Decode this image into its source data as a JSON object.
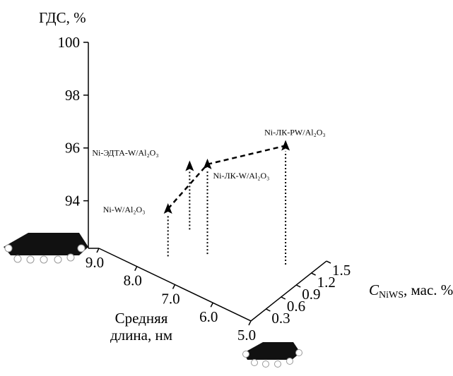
{
  "chart_data": {
    "type": "scatter3d",
    "z_label": "ГДС, %",
    "x_label": [
      "Средняя",
      "длина, нм"
    ],
    "y_label": {
      "symbol": "C",
      "subscript": "NiWS",
      "text": ", мас. %"
    },
    "points": [
      {
        "name": "Ni-W/Al₂O₃",
        "x": 7.7,
        "y": 0.39,
        "z": 94.0
      },
      {
        "name": "Ni-ЭДТА-W/Al₂O₃",
        "x": 7.9,
        "y": 0.97,
        "z": 94.6
      },
      {
        "name": "Ni-ЛК-W/Al₂O₃",
        "x": 7.1,
        "y": 0.72,
        "z": 95.6
      },
      {
        "name": "Ni-ЛК-PW/Al₂O₃",
        "x": 5.6,
        "y": 1.14,
        "z": 96.7
      }
    ],
    "xlim": [
      5,
      9
    ],
    "xticks": [
      {
        "value": 9,
        "label": "9.0"
      },
      {
        "value": 8,
        "label": "8.0"
      },
      {
        "value": 7,
        "label": "7.0"
      },
      {
        "value": 6,
        "label": "6.0"
      },
      {
        "value": 5,
        "label": "5.0"
      }
    ],
    "ylim": [
      0,
      1.5
    ],
    "yticks": [
      0.3,
      0.6,
      0.9,
      1.2,
      1.5
    ],
    "zlim": [
      92.2,
      100
    ],
    "zticks": [
      94,
      96,
      98,
      100
    ],
    "color": "#000000"
  }
}
